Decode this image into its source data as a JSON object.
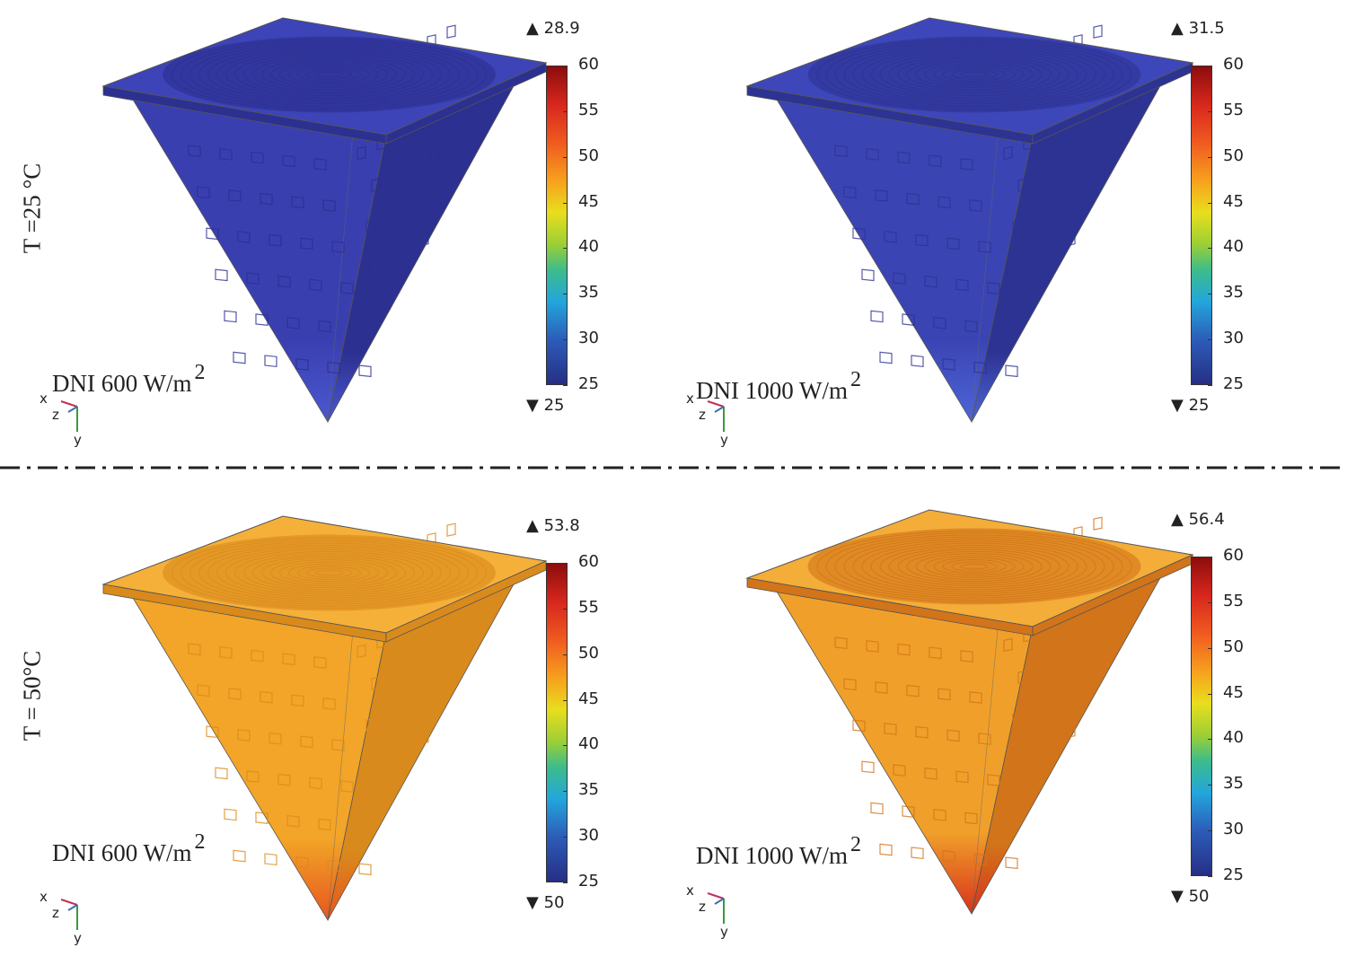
{
  "rows": [
    {
      "label": "T =25 °C"
    },
    {
      "label": "T = 50°C"
    }
  ],
  "panels": [
    {
      "dni": "DNI 600 W/m",
      "power": "2",
      "max": "28.9",
      "min": "25",
      "surface_color": "#3a3fb0",
      "shade": "#2c3090",
      "top_color": "#3d44b8",
      "tip_color": "#4a58d0"
    },
    {
      "dni": "DNI 1000 W/m",
      "power": "2",
      "max": "31.5",
      "min": "25",
      "surface_color": "#3b44b3",
      "shade": "#2d3392",
      "top_color": "#3e47ba",
      "tip_color": "#4d66d8"
    },
    {
      "dni": "DNI 600 W/m",
      "power": "2",
      "max": "53.8",
      "min": "50",
      "surface_color": "#f2a528",
      "shade": "#d98a1c",
      "top_color": "#f5b03a",
      "tip_color": "#e7561e"
    },
    {
      "dni": "DNI 1000 W/m",
      "power": "2",
      "max": "56.4",
      "min": "50",
      "surface_color": "#f0a02a",
      "shade": "#d2741a",
      "top_color": "#f3ad38",
      "tip_color": "#d9321a"
    }
  ],
  "colorbar": {
    "ticks": [
      "60",
      "55",
      "50",
      "45",
      "40",
      "35",
      "30",
      "25"
    ],
    "up_marker": "▲",
    "down_marker": "▼"
  },
  "axes": {
    "x": "x",
    "y": "y",
    "z": "z"
  }
}
